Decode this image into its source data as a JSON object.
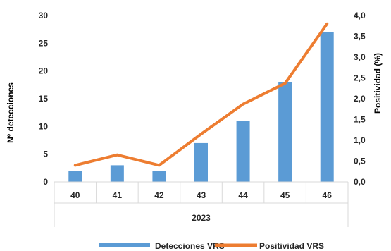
{
  "chart_data": {
    "type": "bar",
    "categories": [
      "40",
      "41",
      "42",
      "43",
      "44",
      "45",
      "46"
    ],
    "group_label": "2023",
    "series": [
      {
        "name": "Detecciones VRS",
        "type": "bar",
        "axis": "left",
        "color": "#5B9BD5",
        "values": [
          2,
          3,
          2,
          7,
          11,
          18,
          27
        ]
      },
      {
        "name": "Positividad VRS",
        "type": "line",
        "axis": "right",
        "color": "#ED7D31",
        "values": [
          0.4,
          0.65,
          0.4,
          1.15,
          1.87,
          2.37,
          3.8
        ]
      }
    ],
    "ylabel": "Nº detecciones",
    "y2label": "Positividad  (%)",
    "ylim": [
      0,
      30
    ],
    "y2lim": [
      0,
      4.0
    ],
    "yticks": [
      "0",
      "5",
      "10",
      "15",
      "20",
      "25",
      "30"
    ],
    "y2ticks": [
      "0,0",
      "0,5",
      "1,0",
      "1,5",
      "2,0",
      "2,5",
      "3,0",
      "3,5",
      "4,0"
    ],
    "grid": false,
    "legend": "bottom"
  }
}
